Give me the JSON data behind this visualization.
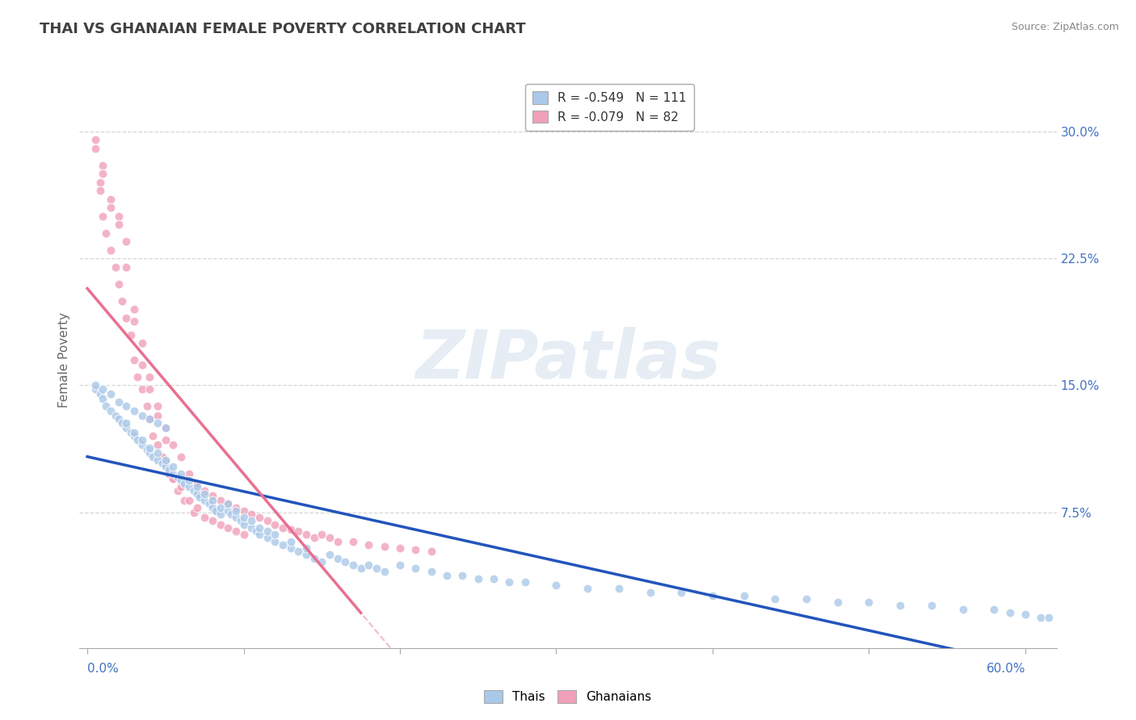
{
  "title": "THAI VS GHANAIAN FEMALE POVERTY CORRELATION CHART",
  "source_text": "Source: ZipAtlas.com",
  "ylabel": "Female Poverty",
  "ytick_labels": [
    "7.5%",
    "15.0%",
    "22.5%",
    "30.0%"
  ],
  "ytick_values": [
    0.075,
    0.15,
    0.225,
    0.3
  ],
  "xlim": [
    -0.005,
    0.62
  ],
  "ylim": [
    -0.005,
    0.335
  ],
  "legend_label_thai": "R = -0.549   N = 111",
  "legend_label_ghana": "R = -0.079   N = 82",
  "watermark_text": "ZIPatlas",
  "thai_color": "#aac8e8",
  "ghanaian_color": "#f0a0b8",
  "thai_line_color": "#2255bb",
  "ghanaian_line_color": "#e87090",
  "dashed_line_color": "#e8a0b0",
  "background_color": "#ffffff",
  "grid_color": "#cccccc",
  "title_color": "#404040",
  "axis_tick_color": "#4472c4",
  "source_color": "#888888",
  "legend_box_color": "#aaaaaa",
  "bottom_legend_label_thai": "Thais",
  "bottom_legend_label_ghana": "Ghanaians"
}
